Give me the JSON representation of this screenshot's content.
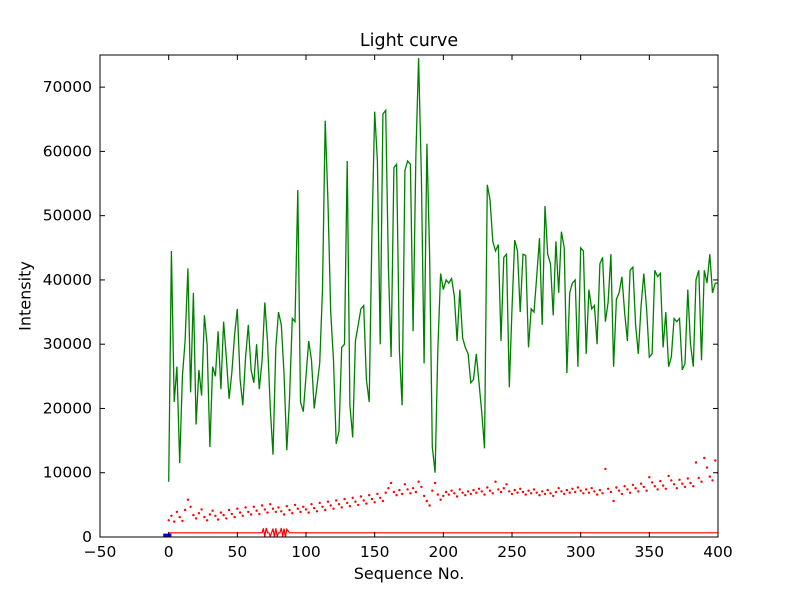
{
  "figure": {
    "background_color": "#ffffff",
    "frame_color": "#000000"
  },
  "chart_data": {
    "type": "line",
    "title": "Light curve",
    "xlabel": "Sequence No.",
    "ylabel": "Intensity",
    "xlim": [
      -50,
      400
    ],
    "ylim": [
      0,
      75000
    ],
    "grid": false,
    "legend": null,
    "xtick_values": [
      -50,
      0,
      50,
      100,
      150,
      200,
      250,
      300,
      350,
      400
    ],
    "xtick_labels": [
      "−50",
      "0",
      "50",
      "100",
      "150",
      "200",
      "250",
      "300",
      "350",
      "400"
    ],
    "ytick_values": [
      0,
      10000,
      20000,
      30000,
      40000,
      50000,
      60000,
      70000
    ],
    "ytick_labels": [
      "0",
      "10000",
      "20000",
      "30000",
      "40000",
      "50000",
      "60000",
      "70000"
    ],
    "series": [
      {
        "name": "light-curve",
        "type": "line",
        "color": "#008000",
        "linewidth": 1.3,
        "x_start": 0,
        "x_step": 2,
        "values": [
          8600,
          44500,
          21000,
          26500,
          11500,
          25000,
          30500,
          41800,
          22500,
          38000,
          17500,
          26000,
          22000,
          34500,
          30000,
          14000,
          26500,
          25000,
          32000,
          23000,
          33500,
          28000,
          21500,
          25500,
          31500,
          35500,
          24500,
          20500,
          28000,
          33000,
          26000,
          24000,
          30000,
          23000,
          27500,
          36500,
          30500,
          20000,
          12800,
          29500,
          35000,
          33000,
          25500,
          13500,
          21500,
          34000,
          33500,
          54000,
          21000,
          19500,
          25000,
          30500,
          27500,
          20000,
          23500,
          27000,
          38500,
          64800,
          52000,
          35000,
          27500,
          14500,
          16500,
          29500,
          30000,
          58500,
          20500,
          15500,
          30500,
          33000,
          35500,
          36000,
          24500,
          21000,
          47000,
          66200,
          58500,
          30000,
          65800,
          66400,
          42000,
          28000,
          57500,
          58000,
          29000,
          20500,
          57000,
          58500,
          58000,
          32000,
          59500,
          74500,
          56000,
          27000,
          61200,
          44000,
          14000,
          10000,
          29000,
          41000,
          38500,
          40000,
          39500,
          40200,
          37500,
          30500,
          38500,
          31000,
          29500,
          28500,
          24000,
          24500,
          28500,
          24000,
          19300,
          13800,
          54800,
          52500,
          46000,
          44500,
          45500,
          30500,
          43500,
          44000,
          23300,
          35500,
          46200,
          44500,
          35000,
          44000,
          43800,
          29500,
          35500,
          35000,
          40500,
          46500,
          33000,
          51500,
          44000,
          42500,
          34500,
          46000,
          38000,
          47500,
          45000,
          25500,
          38000,
          39500,
          40000,
          26500,
          45000,
          44500,
          28500,
          38500,
          35500,
          36000,
          30000,
          42500,
          43500,
          33500,
          36500,
          44000,
          26500,
          37000,
          38000,
          40500,
          35000,
          30500,
          41500,
          42000,
          33000,
          28500,
          36000,
          41000,
          35500,
          28000,
          28500,
          41500,
          40500,
          41000,
          29500,
          35000,
          26500,
          28000,
          34000,
          33500,
          34000,
          26000,
          27000,
          38500,
          30000,
          26500,
          40000,
          41500,
          27500,
          41500,
          39500,
          44000,
          38000,
          39500,
          39500
        ]
      },
      {
        "name": "noise-scatter",
        "type": "scatter",
        "color": "#ff0000",
        "marker_size": 1.2,
        "x_start": 0,
        "x_step": 2,
        "values": [
          2600,
          3300,
          2400,
          3900,
          3100,
          2500,
          4200,
          5800,
          4700,
          3400,
          2900,
          3700,
          4300,
          3100,
          2600,
          3500,
          4100,
          3300,
          2700,
          3800,
          3400,
          2900,
          4200,
          3600,
          3100,
          4400,
          3800,
          3300,
          4600,
          3900,
          3500,
          4700,
          4100,
          3600,
          4900,
          4300,
          3800,
          5100,
          4400,
          3900,
          4600,
          4000,
          3500,
          4800,
          4200,
          3700,
          5000,
          4400,
          3900,
          4700,
          4300,
          3800,
          5100,
          4500,
          4000,
          5300,
          4700,
          4200,
          5500,
          4900,
          4400,
          5700,
          5100,
          4600,
          5900,
          5300,
          4800,
          6100,
          5500,
          5000,
          6300,
          5700,
          5200,
          6500,
          5900,
          5400,
          6700,
          6100,
          5600,
          6900,
          7600,
          8400,
          7000,
          6500,
          7300,
          6700,
          8200,
          7400,
          6800,
          7600,
          7000,
          8600,
          7800,
          6400,
          5600,
          4900,
          7200,
          8400,
          6600,
          5800,
          6400,
          7000,
          6600,
          7200,
          6800,
          6300,
          7400,
          6900,
          6500,
          7100,
          6700,
          7300,
          6900,
          7500,
          7100,
          6600,
          7700,
          7200,
          6800,
          8600,
          7400,
          7000,
          7600,
          8200,
          7100,
          6700,
          7300,
          6900,
          7500,
          7000,
          6600,
          7200,
          6800,
          7400,
          6900,
          6500,
          7100,
          6700,
          7300,
          6800,
          6400,
          7000,
          7600,
          7100,
          6700,
          7300,
          6900,
          7500,
          7000,
          7700,
          7200,
          6800,
          7400,
          6900,
          7600,
          7100,
          6600,
          7300,
          6800,
          10600,
          7500,
          7000,
          5600,
          7700,
          7200,
          6700,
          7900,
          7400,
          6900,
          8100,
          7600,
          7100,
          8300,
          7800,
          7200,
          9300,
          8500,
          7900,
          7400,
          8700,
          8000,
          7500,
          9500,
          8800,
          8200,
          7600,
          8900,
          8300,
          7800,
          9100,
          8400,
          7900,
          11600,
          9200,
          8600,
          12300,
          10800,
          9400,
          8800,
          11900,
          10000
        ]
      },
      {
        "name": "baseline",
        "type": "line",
        "color": "#ff0000",
        "linewidth": 1.2,
        "x": [
          0,
          66,
          68,
          69,
          70,
          71,
          72,
          73,
          74,
          76,
          77,
          78,
          79,
          80,
          81,
          82,
          83,
          84,
          85,
          86,
          88,
          90,
          400
        ],
        "y": [
          650,
          650,
          650,
          1350,
          50,
          1400,
          650,
          650,
          100,
          1300,
          0,
          1350,
          100,
          650,
          650,
          1400,
          50,
          1300,
          0,
          1200,
          650,
          650,
          650
        ]
      },
      {
        "name": "start-marker",
        "type": "line",
        "color": "#0000ff",
        "linewidth": 3.2,
        "x": [
          -4,
          2
        ],
        "y": [
          280,
          280
        ]
      }
    ]
  }
}
